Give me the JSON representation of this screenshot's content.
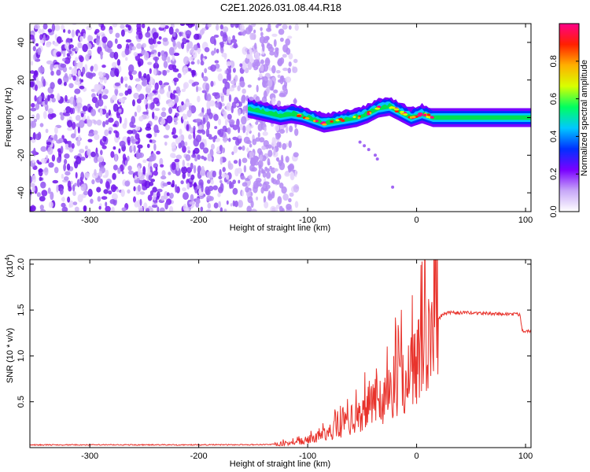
{
  "title": "C2E1.2026.031.08.44.R18",
  "colors": {
    "snr_line": "#e8332c",
    "ridge": "#18c818",
    "scatter": "#7a1cf0"
  },
  "chart_data": [
    {
      "type": "heatmap",
      "xlabel": "Height of straight line (km)",
      "ylabel": "Frequency (Hz)",
      "xlim": [
        -355,
        105
      ],
      "ylim": [
        -50,
        50
      ],
      "xticks": [
        "-300",
        "-200",
        "-100",
        "0",
        "100"
      ],
      "xtick_values": [
        -300,
        -200,
        -100,
        0,
        100
      ],
      "yticks": [
        "-40",
        "-20",
        "0",
        "20",
        "40"
      ],
      "ytick_values": [
        -40,
        -20,
        0,
        20,
        40
      ],
      "grid": false,
      "colorbar": {
        "label": "Normalized spectral amplitude",
        "range": [
          0,
          1
        ],
        "ticks": [
          "0.0",
          "0.2",
          "0.4",
          "0.6",
          "0.8"
        ],
        "tick_values": [
          0.0,
          0.2,
          0.4,
          0.6,
          0.8
        ],
        "colors": [
          "#ffffff",
          "#c8a8f8",
          "#7a00ff",
          "#0030ff",
          "#00c8ff",
          "#00ff60",
          "#d8ff00",
          "#ffb000",
          "#ff2000",
          "#ff0088"
        ]
      },
      "ridge": {
        "x": [
          -155,
          -140,
          -125,
          -115,
          -105,
          -95,
          -85,
          -75,
          -65,
          -55,
          -45,
          -35,
          -25,
          -15,
          -5,
          5,
          15,
          25,
          50,
          75,
          105
        ],
        "freq": [
          5,
          3,
          1,
          2,
          1,
          -1,
          -3,
          -2,
          -1,
          0,
          2,
          5,
          6,
          3,
          0,
          2,
          0,
          0,
          0,
          0,
          0
        ]
      }
    },
    {
      "type": "line",
      "xlabel": "Height of straight line (km)",
      "ylabel": "SNR (10 * v/v)",
      "y_multiplier": "(x10",
      "y_multiplier_exp": "4",
      "y_multiplier_close": ")",
      "xlim": [
        -355,
        105
      ],
      "ylim": [
        0,
        20500
      ],
      "xticks": [
        "-300",
        "-200",
        "-100",
        "0",
        "100"
      ],
      "xtick_values": [
        -300,
        -200,
        -100,
        0,
        100
      ],
      "yticks": [
        "0.5",
        "1.0",
        "1.5",
        "2.0"
      ],
      "ytick_values": [
        5000,
        10000,
        15000,
        20000
      ],
      "grid": false,
      "series": [
        {
          "x": [
            -355,
            -300,
            -200,
            -150,
            -130,
            -120,
            -110,
            -100,
            -90,
            -80,
            -70,
            -60,
            -50,
            -40,
            -30,
            -20,
            -10,
            0,
            5,
            8,
            10,
            15,
            20,
            25,
            30,
            50,
            70,
            90,
            95,
            97,
            100,
            105
          ],
          "values": [
            300,
            300,
            300,
            320,
            350,
            450,
            600,
            800,
            1200,
            1700,
            2300,
            3000,
            3800,
            4700,
            5600,
            6600,
            7700,
            9000,
            10500,
            11500,
            12000,
            13000,
            14000,
            14600,
            14700,
            14700,
            14600,
            14550,
            14500,
            12800,
            12700,
            12750
          ]
        }
      ]
    }
  ]
}
